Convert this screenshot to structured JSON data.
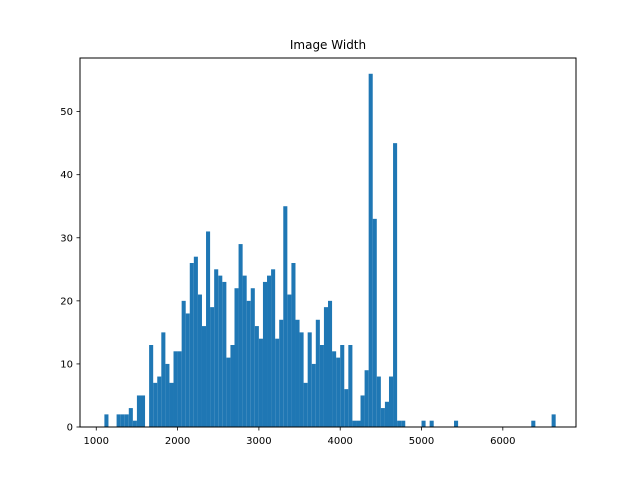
{
  "chart_data": {
    "type": "bar",
    "title": "Image Width",
    "xlabel": "",
    "ylabel": "",
    "xlim": [
      800,
      6900
    ],
    "ylim": [
      0,
      58.5
    ],
    "x_ticks": [
      1000,
      2000,
      3000,
      4000,
      5000,
      6000
    ],
    "y_ticks": [
      0,
      10,
      20,
      30,
      40,
      50
    ],
    "bin_start": 1100,
    "bin_width": 50,
    "bar_color": "#1f77b4",
    "values": [
      2,
      0,
      0,
      2,
      2,
      2,
      3,
      1,
      5,
      5,
      0,
      13,
      7,
      8,
      15,
      10,
      7,
      12,
      12,
      20,
      18,
      26,
      27,
      21,
      16,
      31,
      19,
      25,
      24,
      23,
      11,
      13,
      22,
      29,
      24,
      20,
      22,
      16,
      14,
      23,
      24,
      25,
      14,
      17,
      35,
      21,
      26,
      17,
      15,
      7,
      15,
      10,
      17,
      13,
      19,
      20,
      12,
      11,
      13,
      6,
      13,
      1,
      1,
      5,
      9,
      56,
      33,
      8,
      3,
      4,
      8,
      45,
      1,
      1,
      0,
      0,
      0,
      0,
      1,
      0,
      1,
      0,
      0,
      0,
      0,
      0,
      1,
      0,
      0,
      0,
      0,
      0,
      0,
      0,
      0,
      0,
      0,
      0,
      0,
      0,
      0,
      0,
      0,
      0,
      0,
      1,
      0,
      0,
      0,
      0,
      2
    ]
  }
}
